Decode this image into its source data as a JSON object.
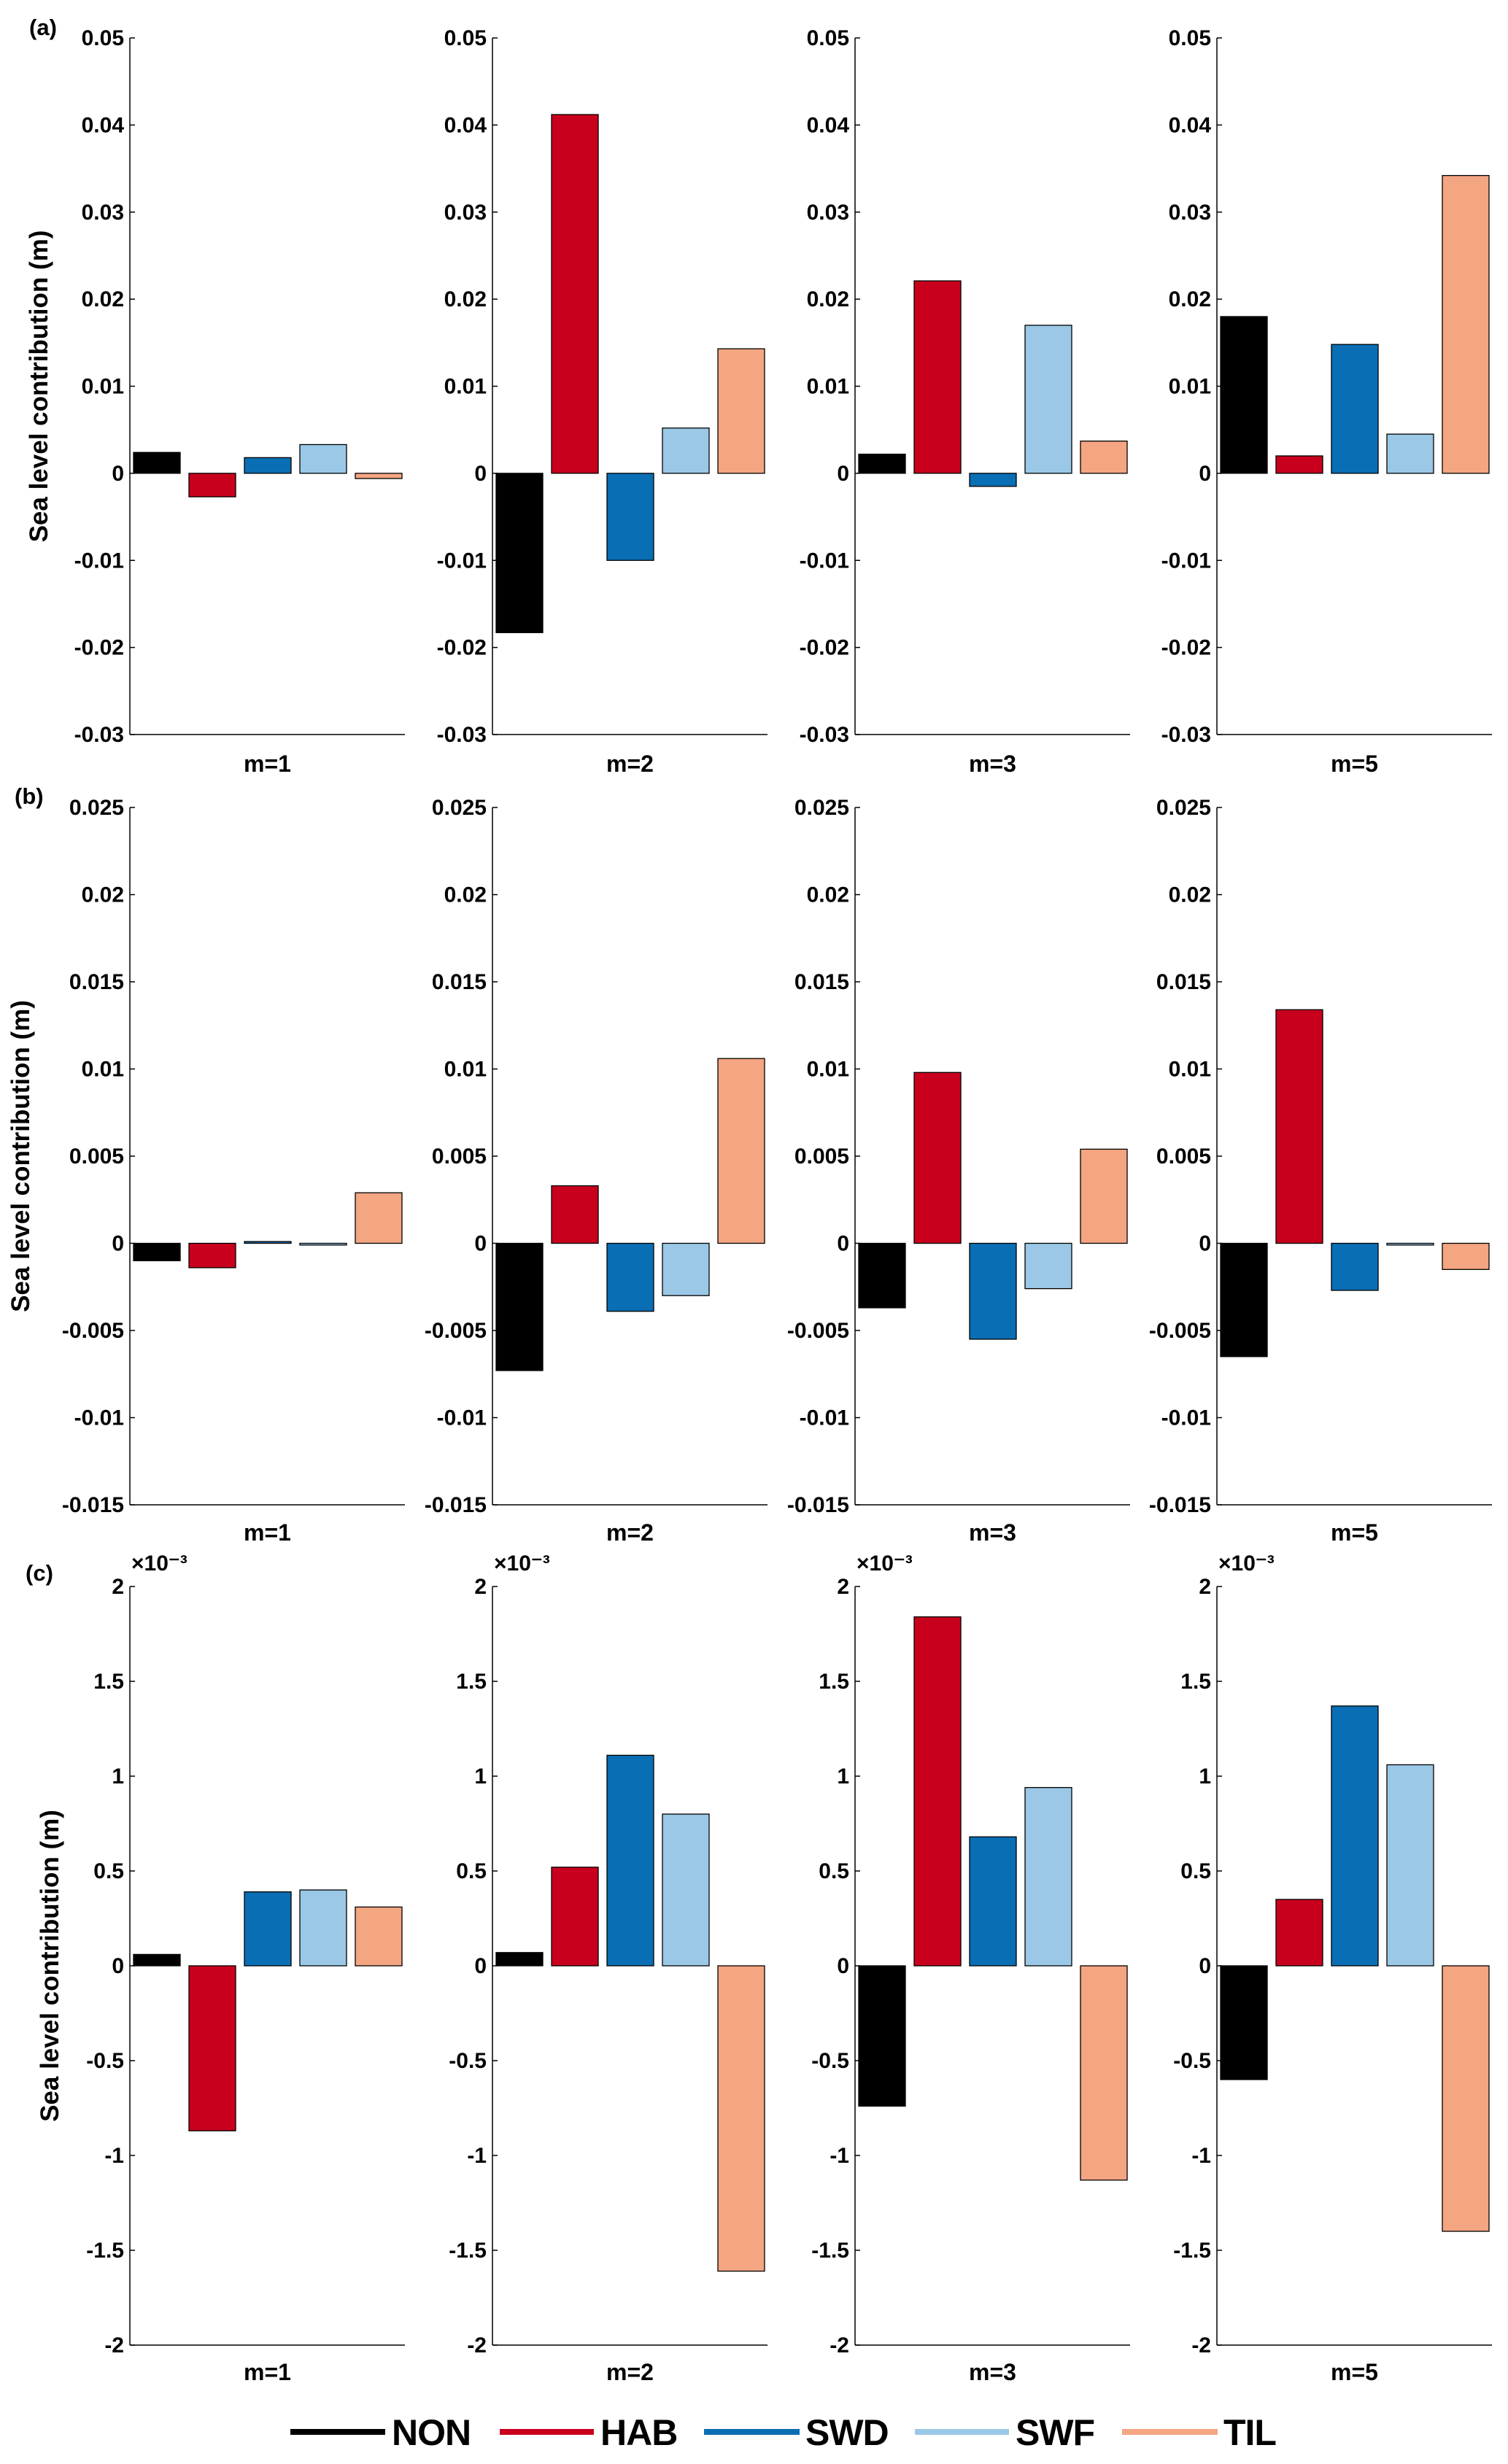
{
  "colors": {
    "NON": "#000000",
    "HAB": "#c8001e",
    "SWD": "#0a6eb4",
    "SWF": "#9ac8e6",
    "TIL": "#f4a582"
  },
  "legend": [
    "NON",
    "HAB",
    "SWD",
    "SWF",
    "TIL"
  ],
  "chart_data": [
    {
      "type": "bar",
      "panel": "(a)",
      "ylabel": "Sea level contribution (m)",
      "ylim": [
        -0.03,
        0.05
      ],
      "ticks": [
        "-0.03",
        "-0.02",
        "-0.01",
        "0",
        "0.01",
        "0.02",
        "0.03",
        "0.04",
        "0.05"
      ],
      "tick_values": [
        -0.03,
        -0.02,
        -0.01,
        0,
        0.01,
        0.02,
        0.03,
        0.04,
        0.05
      ],
      "exponent": "",
      "categories": [
        "m=1",
        "m=2",
        "m=3",
        "m=5"
      ],
      "series": [
        {
          "name": "NON",
          "values": [
            0.0024,
            -0.0183,
            0.0022,
            0.018
          ]
        },
        {
          "name": "HAB",
          "values": [
            -0.0027,
            0.0412,
            0.0221,
            0.002
          ]
        },
        {
          "name": "SWD",
          "values": [
            0.0018,
            -0.01,
            -0.0015,
            0.0148
          ]
        },
        {
          "name": "SWF",
          "values": [
            0.0033,
            0.0052,
            0.017,
            0.0045
          ]
        },
        {
          "name": "TIL",
          "values": [
            -0.0006,
            0.0143,
            0.0037,
            0.0342
          ]
        }
      ]
    },
    {
      "type": "bar",
      "panel": "(b)",
      "ylabel": "Sea level contribution (m)",
      "ylim": [
        -0.015,
        0.025
      ],
      "ticks": [
        "-0.015",
        "-0.01",
        "-0.005",
        "0",
        "0.005",
        "0.01",
        "0.015",
        "0.02",
        "0.025"
      ],
      "tick_values": [
        -0.015,
        -0.01,
        -0.005,
        0,
        0.005,
        0.01,
        0.015,
        0.02,
        0.025
      ],
      "exponent": "",
      "categories": [
        "m=1",
        "m=2",
        "m=3",
        "m=5"
      ],
      "series": [
        {
          "name": "NON",
          "values": [
            -0.001,
            -0.0073,
            -0.0037,
            -0.0065
          ]
        },
        {
          "name": "HAB",
          "values": [
            -0.0014,
            0.0033,
            0.0098,
            0.0134
          ]
        },
        {
          "name": "SWD",
          "values": [
            0.0001,
            -0.0039,
            -0.0055,
            -0.0027
          ]
        },
        {
          "name": "SWF",
          "values": [
            -0.0001,
            -0.003,
            -0.0026,
            -0.0001
          ]
        },
        {
          "name": "TIL",
          "values": [
            0.0029,
            0.0106,
            0.0054,
            -0.0015
          ]
        }
      ]
    },
    {
      "type": "bar",
      "panel": "(c)",
      "ylabel": "Sea level contribution (m)",
      "ylim": [
        -2,
        2
      ],
      "ticks": [
        "-2",
        "-1.5",
        "-1",
        "-0.5",
        "0",
        "0.5",
        "1",
        "1.5",
        "2"
      ],
      "tick_values": [
        -2,
        -1.5,
        -1,
        -0.5,
        0,
        0.5,
        1,
        1.5,
        2
      ],
      "exponent": "×10⁻³",
      "categories": [
        "m=1",
        "m=2",
        "m=3",
        "m=5"
      ],
      "series": [
        {
          "name": "NON",
          "values": [
            0.06,
            0.07,
            -0.74,
            -0.6
          ]
        },
        {
          "name": "HAB",
          "values": [
            -0.87,
            0.52,
            1.84,
            0.35
          ]
        },
        {
          "name": "SWD",
          "values": [
            0.39,
            1.11,
            0.68,
            1.37
          ]
        },
        {
          "name": "SWF",
          "values": [
            0.4,
            0.8,
            0.94,
            1.06
          ]
        },
        {
          "name": "TIL",
          "values": [
            0.31,
            -1.61,
            -1.13,
            -1.4
          ]
        }
      ]
    }
  ]
}
